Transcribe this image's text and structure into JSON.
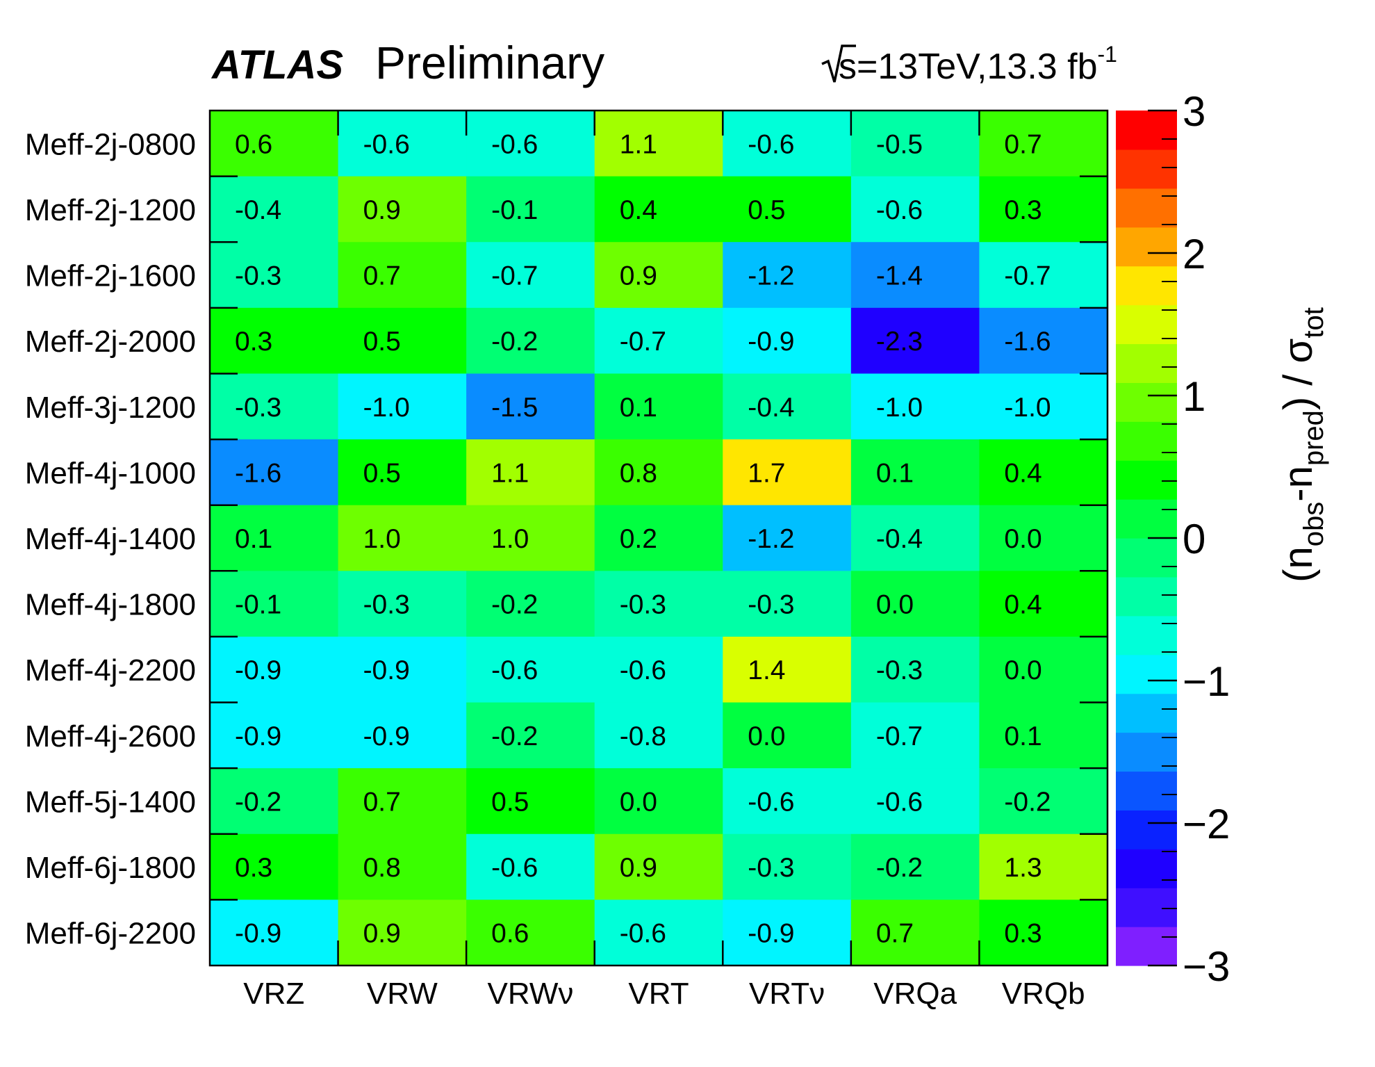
{
  "header": {
    "experiment": "ATLAS",
    "status": "Preliminary",
    "energy": "s",
    "energy_rest": "=13TeV,13.3 fb",
    "lumi_sup": "-1"
  },
  "chart_data": {
    "type": "heatmap",
    "x_categories": [
      "VRZ",
      "VRW",
      "VRWν",
      "VRT",
      "VRTν",
      "VRQa",
      "VRQb"
    ],
    "y_categories": [
      "Meff-2j-0800",
      "Meff-2j-1200",
      "Meff-2j-1600",
      "Meff-2j-2000",
      "Meff-3j-1200",
      "Meff-4j-1000",
      "Meff-4j-1400",
      "Meff-4j-1800",
      "Meff-4j-2200",
      "Meff-4j-2600",
      "Meff-5j-1400",
      "Meff-6j-1800",
      "Meff-6j-2200"
    ],
    "values": [
      [
        0.6,
        -0.6,
        -0.6,
        1.1,
        -0.6,
        -0.5,
        0.7
      ],
      [
        -0.4,
        0.9,
        -0.1,
        0.4,
        0.5,
        -0.6,
        0.3
      ],
      [
        -0.3,
        0.7,
        -0.7,
        0.9,
        -1.2,
        -1.4,
        -0.7
      ],
      [
        0.3,
        0.5,
        -0.2,
        -0.7,
        -0.9,
        -2.3,
        -1.6
      ],
      [
        -0.3,
        -1.0,
        -1.5,
        0.1,
        -0.4,
        -1.0,
        -1.0
      ],
      [
        -1.6,
        0.5,
        1.1,
        0.8,
        1.7,
        0.1,
        0.4
      ],
      [
        0.1,
        1.0,
        1.0,
        0.2,
        -1.2,
        -0.4,
        -0.0
      ],
      [
        -0.1,
        -0.3,
        -0.2,
        -0.3,
        -0.3,
        -0.0,
        0.4
      ],
      [
        -0.9,
        -0.9,
        -0.6,
        -0.6,
        1.4,
        -0.3,
        -0.0
      ],
      [
        -0.9,
        -0.9,
        -0.2,
        -0.8,
        0.0,
        -0.7,
        0.1
      ],
      [
        -0.2,
        0.7,
        0.5,
        0.0,
        -0.6,
        -0.6,
        -0.2
      ],
      [
        0.3,
        0.8,
        -0.6,
        0.9,
        -0.3,
        -0.2,
        1.3
      ],
      [
        -0.9,
        0.9,
        0.6,
        -0.6,
        -0.9,
        0.7,
        0.3
      ]
    ],
    "color_scale": {
      "min": -3,
      "max": 3,
      "bins": 20,
      "colors": [
        "#7f1fff",
        "#3f0fff",
        "#1f00ff",
        "#0a22ff",
        "#0a55ff",
        "#0a8cff",
        "#00bfff",
        "#00f5ff",
        "#00ffd9",
        "#00ffa6",
        "#00ff73",
        "#00ff40",
        "#00ff00",
        "#3aff00",
        "#6eff00",
        "#a2ff00",
        "#d9ff00",
        "#ffe600",
        "#ffa600",
        "#ff7000",
        "#ff3300",
        "#ff0000"
      ],
      "ticks": [
        "3",
        "2",
        "1",
        "0",
        "−1",
        "−2",
        "−3"
      ]
    },
    "z_label": {
      "paren_open": "(n",
      "obs": "obs",
      "minus_n": "-n",
      "pred": "pred",
      "paren_close": ") / σ",
      "tot": "tot"
    }
  }
}
